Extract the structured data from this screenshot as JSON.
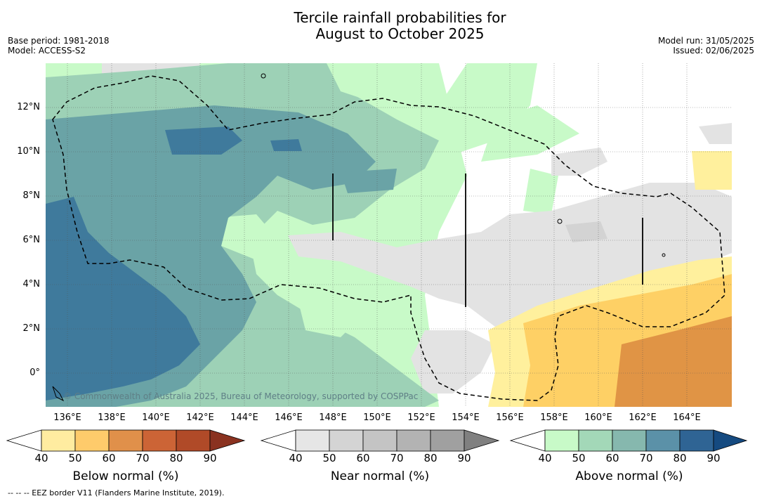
{
  "title": {
    "line1": "Tercile rainfall probabilities for",
    "line2": "August to October 2025"
  },
  "meta_left": {
    "base_period": "Base period: 1981-2018",
    "model": "Model: ACCESS-S2"
  },
  "meta_right": {
    "model_run": "Model run: 31/05/2025",
    "issued": "Issued: 02/06/2025"
  },
  "map": {
    "y_labels": [
      "12°N",
      "10°N",
      "8°N",
      "6°N",
      "4°N",
      "2°N",
      "0°"
    ],
    "x_labels": [
      "136°E",
      "138°E",
      "140°E",
      "142°E",
      "144°E",
      "146°E",
      "148°E",
      "150°E",
      "152°E",
      "154°E",
      "156°E",
      "158°E",
      "160°E",
      "162°E",
      "164°E"
    ],
    "credit": "© Commonwealth of Australia 2025, Bureau of Meteorology, supported by COSPPac",
    "eez_line_style": "dashed",
    "colors": {
      "near_40": "#e3e3e3",
      "near_50": "#d3d3d3",
      "above_40": "#c8fac8",
      "above_50": "#9dd1b6",
      "above_60": "#6aa3a6",
      "above_70": "#3f7a9c",
      "below_40": "#fff09d",
      "below_50": "#fed065",
      "below_60": "#e09445"
    }
  },
  "colorbars": {
    "below": {
      "title": "Below normal (%)",
      "ticks": [
        "40",
        "50",
        "60",
        "70",
        "80",
        "90"
      ],
      "colors": [
        "#ffffff",
        "#ffeca0",
        "#fecb6b",
        "#e0904a",
        "#cc6436",
        "#b04a28",
        "#8a3220"
      ]
    },
    "near": {
      "title": "Near normal (%)",
      "ticks": [
        "40",
        "50",
        "60",
        "70",
        "80",
        "90"
      ],
      "colors": [
        "#ffffff",
        "#e6e6e6",
        "#d4d4d4",
        "#c4c4c4",
        "#b3b3b3",
        "#a0a0a0",
        "#808080"
      ]
    },
    "above": {
      "title": "Above normal (%)",
      "ticks": [
        "40",
        "50",
        "60",
        "70",
        "80",
        "90"
      ],
      "colors": [
        "#ffffff",
        "#c8fac8",
        "#a3d8b8",
        "#86b8ae",
        "#5b91a8",
        "#2f6494",
        "#154a80"
      ]
    }
  },
  "footnote": "--  --  -- EEZ border V11 (Flanders Marine Institute, 2019)."
}
